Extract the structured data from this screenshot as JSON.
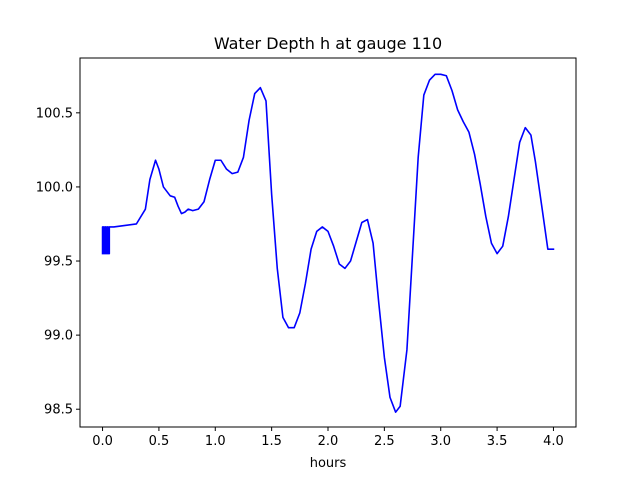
{
  "chart_data": {
    "type": "line",
    "title": "Water Depth h at gauge 110",
    "xlabel": "hours",
    "ylabel": "",
    "xlim": [
      -0.2,
      4.2
    ],
    "ylim": [
      98.38,
      100.87
    ],
    "grid": false,
    "x_ticks": [
      0.0,
      0.5,
      1.0,
      1.5,
      2.0,
      2.5,
      3.0,
      3.5,
      4.0
    ],
    "x_tick_labels": [
      "0.0",
      "0.5",
      "1.0",
      "1.5",
      "2.0",
      "2.5",
      "3.0",
      "3.5",
      "4.0"
    ],
    "y_ticks": [
      98.5,
      99.0,
      99.5,
      100.0,
      100.5
    ],
    "y_tick_labels": [
      "98.5",
      "99.0",
      "99.5",
      "100.0",
      "100.5"
    ],
    "series": [
      {
        "name": "",
        "color": "#0000ff",
        "x": [
          0.0,
          0.0,
          0.01,
          0.01,
          0.02,
          0.02,
          0.03,
          0.03,
          0.04,
          0.04,
          0.05,
          0.05,
          0.06,
          0.06,
          0.07,
          0.1,
          0.2,
          0.3,
          0.38,
          0.42,
          0.47,
          0.5,
          0.54,
          0.6,
          0.64,
          0.67,
          0.7,
          0.73,
          0.76,
          0.8,
          0.85,
          0.9,
          0.95,
          1.0,
          1.05,
          1.1,
          1.15,
          1.2,
          1.25,
          1.3,
          1.35,
          1.4,
          1.45,
          1.5,
          1.55,
          1.6,
          1.65,
          1.7,
          1.75,
          1.8,
          1.85,
          1.9,
          1.95,
          2.0,
          2.05,
          2.1,
          2.15,
          2.2,
          2.25,
          2.3,
          2.35,
          2.4,
          2.45,
          2.5,
          2.55,
          2.6,
          2.64,
          2.7,
          2.75,
          2.8,
          2.85,
          2.9,
          2.95,
          3.0,
          3.05,
          3.1,
          3.15,
          3.2,
          3.25,
          3.3,
          3.35,
          3.4,
          3.45,
          3.5,
          3.55,
          3.6,
          3.65,
          3.7,
          3.75,
          3.8,
          3.84,
          3.9,
          3.95,
          4.0
        ],
        "y": [
          99.55,
          99.73,
          99.73,
          99.55,
          99.55,
          99.73,
          99.73,
          99.55,
          99.55,
          99.73,
          99.73,
          99.55,
          99.55,
          99.73,
          99.73,
          99.73,
          99.74,
          99.75,
          99.85,
          100.05,
          100.18,
          100.12,
          100.0,
          99.94,
          99.93,
          99.87,
          99.82,
          99.83,
          99.85,
          99.84,
          99.85,
          99.9,
          100.05,
          100.18,
          100.18,
          100.12,
          100.09,
          100.1,
          100.2,
          100.45,
          100.63,
          100.67,
          100.58,
          99.95,
          99.45,
          99.12,
          99.05,
          99.05,
          99.15,
          99.35,
          99.58,
          99.7,
          99.73,
          99.7,
          99.6,
          99.48,
          99.45,
          99.5,
          99.63,
          99.76,
          99.78,
          99.62,
          99.22,
          98.85,
          98.58,
          98.48,
          98.52,
          98.9,
          99.55,
          100.2,
          100.62,
          100.72,
          100.76,
          100.76,
          100.75,
          100.65,
          100.52,
          100.44,
          100.37,
          100.22,
          100.02,
          99.8,
          99.62,
          99.55,
          99.6,
          99.8,
          100.05,
          100.3,
          100.4,
          100.35,
          100.17,
          99.85,
          99.58,
          99.58
        ]
      }
    ]
  }
}
